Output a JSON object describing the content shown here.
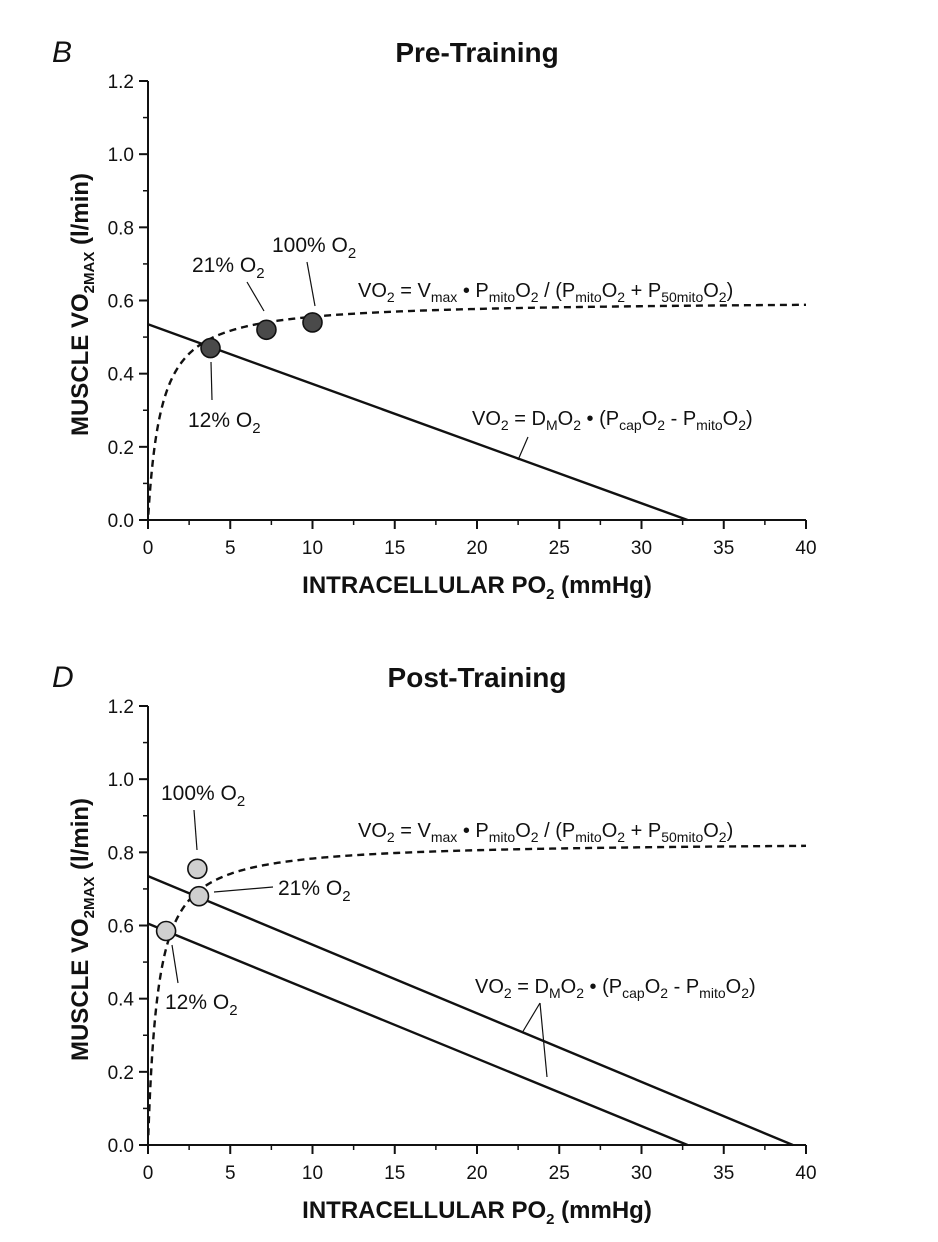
{
  "figure": {
    "panels": [
      {
        "letter": "B",
        "title": "Pre-Training",
        "ylabel": [
          "MUSCLE VO",
          "2MAX",
          " (l/min)"
        ],
        "xlabel": [
          "INTRACELLULAR PO",
          "2",
          " (mmHg)"
        ],
        "eq_mito": [
          "VO",
          "2",
          " = V",
          "max",
          " • P",
          "mito",
          "O",
          "2",
          " / (P",
          "mito",
          "O",
          "2",
          " + P",
          "50mito",
          "O",
          "2",
          ")"
        ],
        "eq_diff": [
          "VO",
          "2",
          " = D",
          "M",
          "O",
          "2",
          " • (P",
          "cap",
          "O",
          "2",
          " - P",
          "mito",
          "O",
          "2",
          ")"
        ],
        "annotations": [
          {
            "label": [
              "21% O",
              "2"
            ]
          },
          {
            "label": [
              "100% O",
              "2"
            ]
          },
          {
            "label": [
              "12% O",
              "2"
            ]
          }
        ]
      },
      {
        "letter": "D",
        "title": "Post-Training",
        "ylabel": [
          "MUSCLE VO",
          "2MAX",
          " (l/min)"
        ],
        "xlabel": [
          "INTRACELLULAR PO",
          "2",
          " (mmHg)"
        ],
        "eq_mito": [
          "VO",
          "2",
          " = V",
          "max",
          " • P",
          "mito",
          "O",
          "2",
          " / (P",
          "mito",
          "O",
          "2",
          " + P",
          "50mito",
          "O",
          "2",
          ")"
        ],
        "eq_diff": [
          "VO",
          "2",
          " = D",
          "M",
          "O",
          "2",
          " • (P",
          "cap",
          "O",
          "2",
          " - P",
          "mito",
          "O",
          "2",
          ")"
        ],
        "annotations": [
          {
            "label": [
              "100% O",
              "2"
            ]
          },
          {
            "label": [
              "21% O",
              "2"
            ]
          },
          {
            "label": [
              "12% O",
              "2"
            ]
          }
        ]
      }
    ]
  },
  "chart_data": [
    {
      "type": "line",
      "title": "Pre-Training",
      "xlabel": "INTRACELLULAR PO2 (mmHg)",
      "ylabel": "MUSCLE VO2MAX (l/min)",
      "xlim": [
        0,
        40
      ],
      "ylim": [
        0,
        1.2
      ],
      "xticks": [
        "0",
        "5",
        "10",
        "15",
        "20",
        "25",
        "30",
        "35",
        "40"
      ],
      "yticks": [
        "0.0",
        "0.2",
        "0.4",
        "0.6",
        "0.8",
        "1.0",
        "1.2"
      ],
      "series": [
        {
          "name": "mitochondrial curve (dashed)",
          "style": "dashed",
          "vmax": 0.6,
          "p50": 0.8
        },
        {
          "name": "diffusion line",
          "style": "solid",
          "points": [
            [
              0,
              0.535
            ],
            [
              32.8,
              0.0
            ]
          ]
        }
      ],
      "points": [
        {
          "label": "12% O2",
          "x": 3.8,
          "y": 0.47
        },
        {
          "label": "21% O2",
          "x": 7.2,
          "y": 0.52
        },
        {
          "label": "100% O2",
          "x": 10.0,
          "y": 0.54
        }
      ],
      "point_color": "#4a4a4a"
    },
    {
      "type": "line",
      "title": "Post-Training",
      "xlabel": "INTRACELLULAR PO2 (mmHg)",
      "ylabel": "MUSCLE VO2MAX (l/min)",
      "xlim": [
        0,
        40
      ],
      "ylim": [
        0,
        1.2
      ],
      "xticks": [
        "0",
        "5",
        "10",
        "15",
        "20",
        "25",
        "30",
        "35",
        "40"
      ],
      "yticks": [
        "0.0",
        "0.2",
        "0.4",
        "0.6",
        "0.8",
        "1.0",
        "1.2"
      ],
      "series": [
        {
          "name": "mitochondrial curve (dashed)",
          "style": "dashed",
          "vmax": 0.83,
          "p50": 0.6
        },
        {
          "name": "diffusion line upper",
          "style": "solid",
          "points": [
            [
              0,
              0.735
            ],
            [
              39.2,
              0.0
            ]
          ]
        },
        {
          "name": "diffusion line lower",
          "style": "solid",
          "points": [
            [
              0,
              0.605
            ],
            [
              32.8,
              0.0
            ]
          ]
        }
      ],
      "points": [
        {
          "label": "12% O2",
          "x": 1.1,
          "y": 0.585
        },
        {
          "label": "21% O2",
          "x": 3.1,
          "y": 0.68
        },
        {
          "label": "100% O2",
          "x": 3.0,
          "y": 0.755
        }
      ],
      "point_color": "#cfcfcf"
    }
  ]
}
